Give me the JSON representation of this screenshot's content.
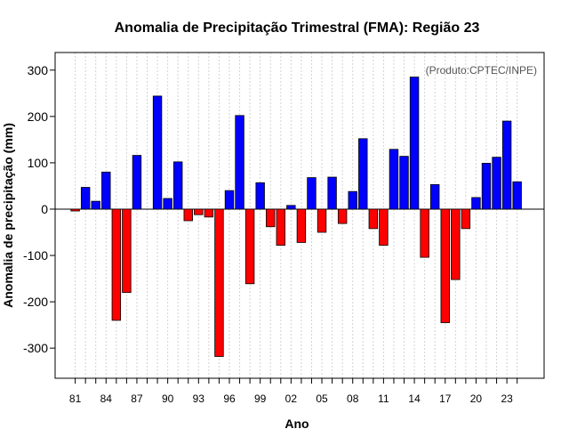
{
  "chart_data": {
    "type": "bar",
    "title": "Anomalia de Precipitação Trimestral (FMA): Região 23",
    "xlabel": "Ano",
    "ylabel": "Anomalia de precipitação (mm)",
    "source_note": "(Produto:CPTEC/INPE)",
    "ylim": [
      -365,
      338
    ],
    "yticks": [
      -300,
      -200,
      -100,
      0,
      100,
      200,
      300
    ],
    "xtick_labels": [
      "81",
      "84",
      "87",
      "90",
      "93",
      "96",
      "99",
      "02",
      "05",
      "08",
      "11",
      "14",
      "17",
      "20",
      "23"
    ],
    "grid": true,
    "colors": {
      "positive": "#0000ff",
      "negative": "#ff0000",
      "grid": "#d3d3d3"
    },
    "categories": [
      "1981",
      "1982",
      "1983",
      "1984",
      "1985",
      "1986",
      "1987",
      "1988",
      "1989",
      "1990",
      "1991",
      "1992",
      "1993",
      "1994",
      "1995",
      "1996",
      "1997",
      "1998",
      "1999",
      "2000",
      "2001",
      "2002",
      "2003",
      "2004",
      "2005",
      "2006",
      "2007",
      "2008",
      "2009",
      "2010",
      "2011",
      "2012",
      "2013",
      "2014",
      "2015",
      "2016",
      "2017",
      "2018",
      "2019",
      "2020",
      "2021",
      "2022",
      "2023",
      "2024"
    ],
    "values": [
      -4,
      47,
      17,
      80,
      -240,
      -180,
      116,
      0,
      244,
      23,
      102,
      -25,
      -12,
      -17,
      -318,
      40,
      202,
      -161,
      57,
      -38,
      -78,
      8,
      -72,
      68,
      -50,
      69,
      -31,
      38,
      152,
      -42,
      -78,
      129,
      114,
      285,
      -104,
      53,
      -245,
      -152,
      -42,
      25,
      99,
      112,
      190,
      59
    ]
  }
}
